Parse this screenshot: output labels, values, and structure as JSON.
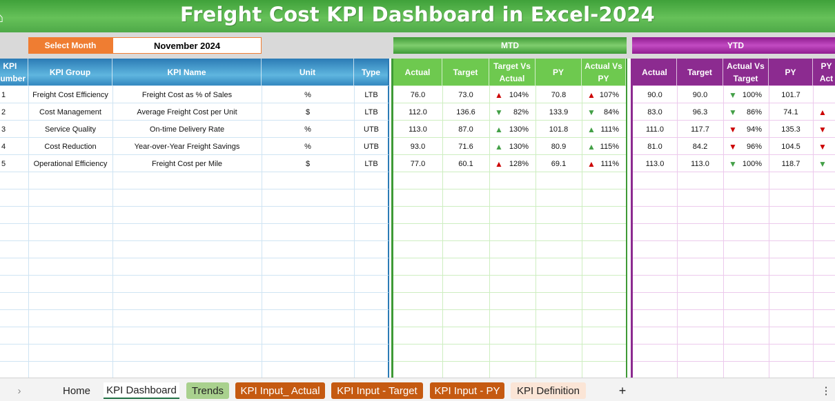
{
  "title": "Freight Cost KPI Dashboard in Excel-2024",
  "selector": {
    "label": "Select Month",
    "value": "November 2024"
  },
  "sections": {
    "mtd": "MTD",
    "ytd": "YTD"
  },
  "headers": {
    "kpi_number": "KPI\nNumber",
    "kpi_group": "KPI Group",
    "kpi_name": "KPI Name",
    "unit": "Unit",
    "type": "Type",
    "mtd": [
      "Actual",
      "Target",
      "Target Vs\nActual",
      "PY",
      "Actual Vs\nPY"
    ],
    "ytd": [
      "Actual",
      "Target",
      "Actual Vs\nTarget",
      "PY",
      "PY\nAct"
    ]
  },
  "rows": [
    {
      "num": "1",
      "group": "Freight Cost Efficiency",
      "name": "Freight Cost as % of Sales",
      "unit": "%",
      "type": "LTB",
      "mtd": {
        "actual": "76.0",
        "target": "73.0",
        "tva": "104%",
        "tva_icon": "up-red",
        "py": "70.8",
        "avp": "107%",
        "avp_icon": "up-red"
      },
      "ytd": {
        "actual": "90.0",
        "target": "90.0",
        "avt": "100%",
        "avt_icon": "down-green",
        "py": "101.7",
        "pya_icon": ""
      }
    },
    {
      "num": "2",
      "group": "Cost Management",
      "name": "Average Freight Cost per Unit",
      "unit": "$",
      "type": "LTB",
      "mtd": {
        "actual": "112.0",
        "target": "136.6",
        "tva": "82%",
        "tva_icon": "down-green",
        "py": "133.9",
        "avp": "84%",
        "avp_icon": "down-green"
      },
      "ytd": {
        "actual": "83.0",
        "target": "96.3",
        "avt": "86%",
        "avt_icon": "down-green",
        "py": "74.1",
        "pya_icon": "up-red"
      }
    },
    {
      "num": "3",
      "group": "Service Quality",
      "name": "On-time Delivery Rate",
      "unit": "%",
      "type": "UTB",
      "mtd": {
        "actual": "113.0",
        "target": "87.0",
        "tva": "130%",
        "tva_icon": "up-green",
        "py": "101.8",
        "avp": "111%",
        "avp_icon": "up-green"
      },
      "ytd": {
        "actual": "111.0",
        "target": "117.7",
        "avt": "94%",
        "avt_icon": "down-red",
        "py": "135.3",
        "pya_icon": "down-red"
      }
    },
    {
      "num": "4",
      "group": "Cost Reduction",
      "name": "Year-over-Year Freight Savings",
      "unit": "%",
      "type": "UTB",
      "mtd": {
        "actual": "93.0",
        "target": "71.6",
        "tva": "130%",
        "tva_icon": "up-green",
        "py": "80.9",
        "avp": "115%",
        "avp_icon": "up-green"
      },
      "ytd": {
        "actual": "81.0",
        "target": "84.2",
        "avt": "96%",
        "avt_icon": "down-red",
        "py": "104.5",
        "pya_icon": "down-red"
      }
    },
    {
      "num": "5",
      "group": "Operational Efficiency",
      "name": "Freight Cost per Mile",
      "unit": "$",
      "type": "LTB",
      "mtd": {
        "actual": "77.0",
        "target": "60.1",
        "tva": "128%",
        "tva_icon": "up-red",
        "py": "69.1",
        "avp": "111%",
        "avp_icon": "up-red"
      },
      "ytd": {
        "actual": "113.0",
        "target": "113.0",
        "avt": "100%",
        "avt_icon": "down-green",
        "py": "118.7",
        "pya_icon": "down-green"
      }
    }
  ],
  "tabs": {
    "home": "Home",
    "kpi_dashboard": "KPI Dashboard",
    "trends": "Trends",
    "kpi_input_actual": "KPI Input_ Actual",
    "kpi_input_target": "KPI Input - Target",
    "kpi_input_py": "KPI Input - PY",
    "kpi_definition": "KPI Definition",
    "add": "+",
    "more": "⋮",
    "scroll_right": "›"
  },
  "colors": {
    "title_green": "#4ea948",
    "select_orange": "#ef7d32",
    "header_blue": "#2b7bb5",
    "mtd_green": "#6ec94f",
    "ytd_purple": "#8c2b90",
    "tab_orange": "#c55a11",
    "tab_green": "#a9d18e",
    "up_red": "#cc0000",
    "green_arrow": "#43a047"
  }
}
